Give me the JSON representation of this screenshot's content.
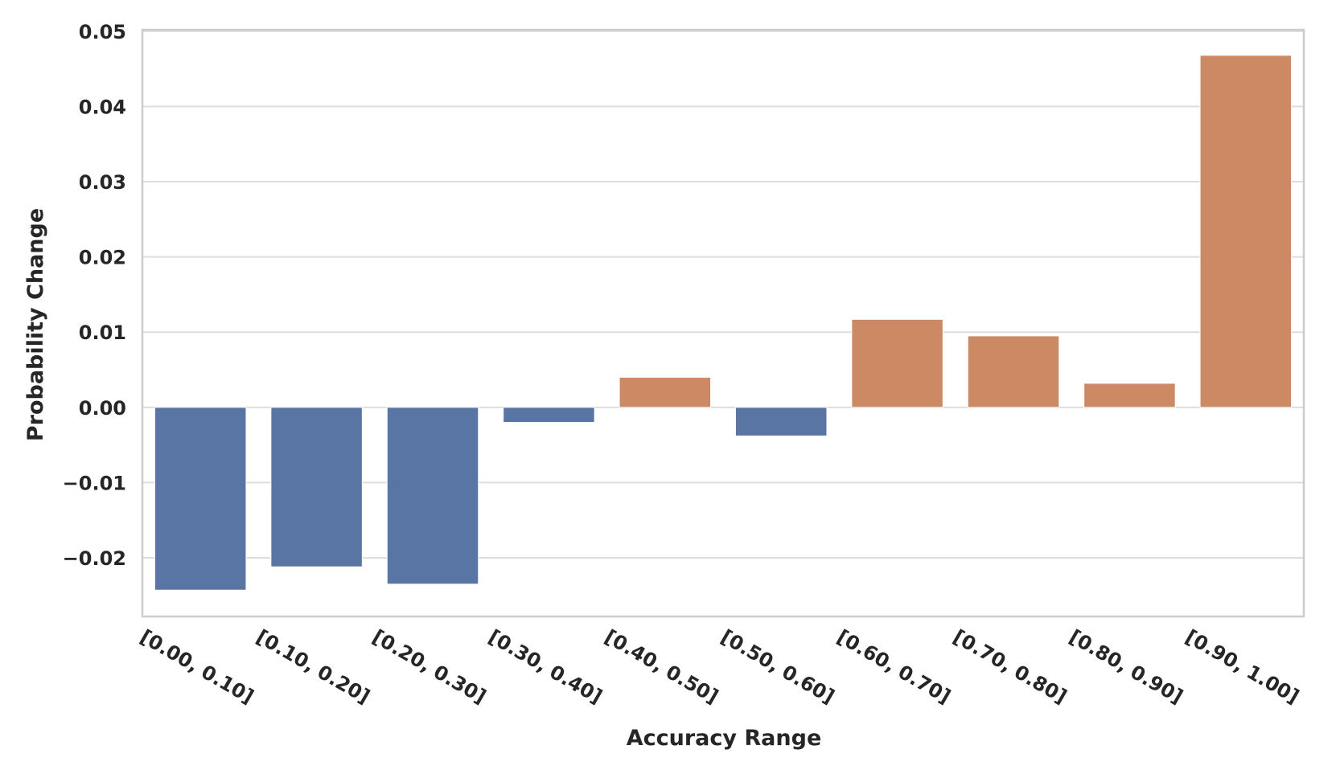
{
  "chart_data": {
    "type": "bar",
    "title": "",
    "xlabel": "Accuracy Range",
    "ylabel": "Probability Change",
    "categories": [
      "[0.00, 0.10]",
      "[0.10, 0.20]",
      "[0.20, 0.30]",
      "[0.30, 0.40]",
      "[0.40, 0.50]",
      "[0.50, 0.60]",
      "[0.60, 0.70]",
      "[0.70, 0.80]",
      "[0.80, 0.90]",
      "[0.90, 1.00]"
    ],
    "values": [
      -0.0243,
      -0.0212,
      -0.0235,
      -0.002,
      0.004,
      -0.0038,
      0.0117,
      0.0095,
      0.0032,
      0.0468
    ],
    "ylim": [
      -0.0278,
      0.0502
    ],
    "yticks": [
      -0.02,
      -0.01,
      0.0,
      0.01,
      0.02,
      0.03,
      0.04,
      0.05
    ],
    "ytick_labels": [
      "−0.02",
      "−0.01",
      "0.00",
      "0.01",
      "0.02",
      "0.03",
      "0.04",
      "0.05"
    ],
    "grid": true,
    "colors": {
      "negative": "#5975a4",
      "positive": "#cc8963",
      "grid": "#dddddd",
      "frame": "#cccccc"
    }
  }
}
